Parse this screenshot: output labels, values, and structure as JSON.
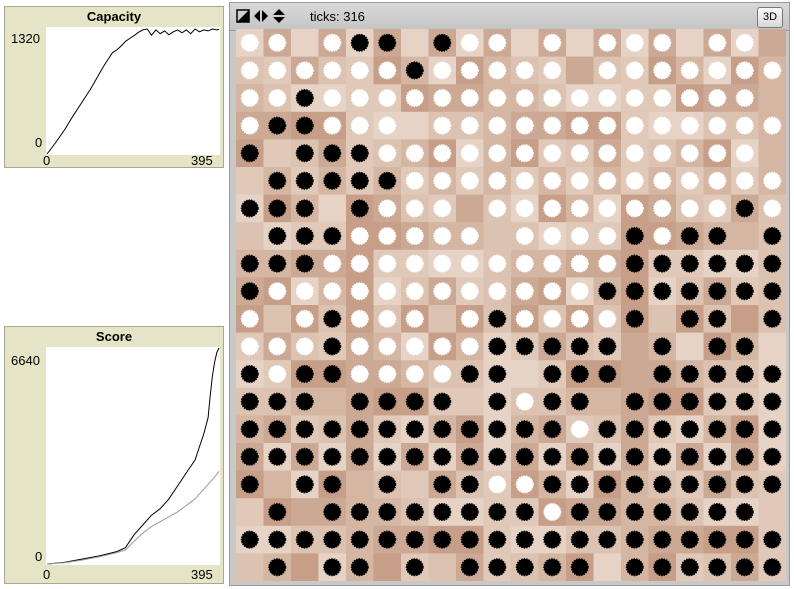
{
  "capacity_plot": {
    "title": "Capacity",
    "y_max_label": "1320",
    "y_min_label": "0",
    "x_min_label": "0",
    "x_max_label": "395",
    "chart_data": {
      "type": "line",
      "title": "Capacity",
      "xlim": [
        0,
        395
      ],
      "ylim": [
        0,
        1320
      ],
      "series": [
        {
          "color": "#000000",
          "x": [
            0,
            20,
            40,
            60,
            80,
            100,
            110,
            120,
            130,
            140,
            150,
            160,
            170,
            180,
            190,
            200,
            210,
            220,
            230,
            240,
            250,
            260,
            270,
            280,
            290,
            300,
            310,
            320,
            330,
            340,
            350,
            360,
            370,
            380,
            390,
            395
          ],
          "y": [
            0,
            120,
            250,
            400,
            540,
            680,
            760,
            840,
            920,
            990,
            1060,
            1090,
            1130,
            1180,
            1210,
            1240,
            1275,
            1300,
            1310,
            1245,
            1300,
            1260,
            1290,
            1250,
            1280,
            1300,
            1270,
            1300,
            1260,
            1310,
            1280,
            1300,
            1290,
            1310,
            1300,
            1305
          ]
        }
      ]
    }
  },
  "score_plot": {
    "title": "Score",
    "y_max_label": "6640",
    "y_min_label": "0",
    "x_min_label": "0",
    "x_max_label": "395",
    "chart_data": {
      "type": "line",
      "title": "Score",
      "xlim": [
        0,
        395
      ],
      "ylim": [
        0,
        6640
      ],
      "series": [
        {
          "color": "#000000",
          "x": [
            0,
            40,
            80,
            120,
            160,
            180,
            200,
            220,
            240,
            260,
            280,
            300,
            310,
            320,
            330,
            340,
            350,
            360,
            370,
            375,
            380,
            385,
            390,
            395
          ],
          "y": [
            0,
            50,
            150,
            250,
            380,
            500,
            900,
            1200,
            1500,
            1700,
            2000,
            2400,
            2600,
            2800,
            3000,
            3200,
            3600,
            4000,
            4500,
            5200,
            5800,
            6200,
            6500,
            6640
          ]
        },
        {
          "color": "#999999",
          "x": [
            0,
            40,
            80,
            120,
            160,
            180,
            200,
            220,
            240,
            260,
            280,
            300,
            310,
            320,
            330,
            340,
            350,
            360,
            370,
            380,
            390,
            395
          ],
          "y": [
            0,
            40,
            120,
            220,
            350,
            430,
            700,
            950,
            1150,
            1300,
            1450,
            1600,
            1700,
            1800,
            1900,
            2000,
            2150,
            2300,
            2450,
            2600,
            2750,
            2850
          ]
        }
      ]
    }
  },
  "view": {
    "ticks_label": "ticks: 316",
    "btn_3d": "3D",
    "grid": {
      "cols": 20,
      "rows": 20,
      "cells": [
        "1W,1W,0 ,1W,1B,1B,0 ,1B,1W,1W,0 ,1W,0 ,1W,1W,1W,0 ,1W,1W,0 ",
        "1W,1W,1W,1W,1W,1W,1B,1W,1W,1W,1W,1W,0 ,1W,1W,1W,1W,1W,1W,1W",
        "1W,1W,1B,1W,1W,1W,1W,1W,1W,1W,1W,1W,1W,1W,1W,1W,1W,1W,1W,0 ",
        "1W,1B,1B,1W,1W,1W,0 ,1W,1W,1W,1W,1W,1W,1W,1W,1W,1W,1W,1W,1W",
        "1B,0 ,1B,1B,1B,1W,1W,1W,1W,1W,1W,1W,1W,1W,1W,1W,1W,1W,1W,0 ",
        "0 ,1B,1B,1B,1B,1B,1W,1W,1W,1W,1W,1W,1W,1W,1W,1W,1W,1W,1W,1W",
        "1B,1B,1B,0 ,1B,1W,1W,1W,0 ,1W,1W,1W,1W,1W,1W,1W,1W,1W,1B,1W",
        "0 ,1B,1B,1B,1W,1W,1W,1W,1W,0 ,1W,1W,1W,1W,1B,1W,1B,1B,0 ,1B",
        "1B,1B,1B,1W,1W,1W,1W,1W,1W,1W,1W,1W,1W,1W,1B,1B,1B,1B,1B,1B",
        "1B,1W,1W,1W,1W,1W,1W,1W,1W,1W,1W,1W,1W,1B,1B,1B,1B,1B,1B,1B",
        "1W,0 ,1W,1B,1W,1W,1W,0 ,1W,1B,1W,1W,1W,1W,1B,0 ,1B,1B,0 ,1B",
        "1W,1W,1W,1B,1W,1W,1W,1W,1W,1B,1B,1B,1B,1B,0 ,1B,0 ,1B,1B,0 ",
        "1B,1W,1B,1B,1W,1W,1W,1W,1B,1B,0 ,1B,1B,1B,0 ,1B,1B,1B,1B,1B",
        "1B,1B,1B,0 ,1B,1B,1B,1B,0 ,1B,1W,1B,1B,0 ,1B,1B,1B,1B,1B,1B",
        "1B,1B,1B,1B,1B,1B,1B,1B,1B,1B,1B,1B,1W,1B,1B,1B,1B,1B,1B,1B",
        "1B,1B,1B,1B,1B,1B,1B,1B,1B,1B,1B,1B,1B,1B,1B,1B,1B,1B,1B,1B",
        "1B,0 ,1B,1B,0 ,1B,0 ,1B,1B,1W,1W,1B,1B,1B,1B,1B,1B,1B,1B,1B",
        "0 ,1B,0 ,1B,1B,1B,1B,1B,1B,1B,1B,1W,1B,1B,1B,1B,1B,1B,1B,0 ",
        "1B,1B,1B,1B,1B,1B,1B,1B,1B,1B,1B,1B,1B,1B,1B,1B,1B,1B,1B,1B",
        "0 ,1B,0 ,1B,1B,0 ,1B,0 ,1B,1B,1B,1B,1B,0 ,1B,1B,1B,1B,1B,1B"
      ]
    }
  }
}
